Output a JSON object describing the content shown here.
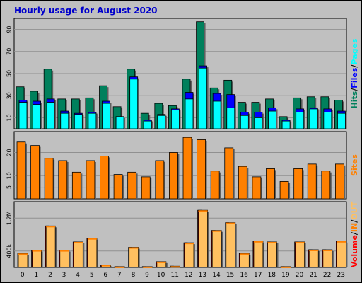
{
  "chart_data": {
    "type": "bar",
    "title": "Hourly usage for August 2020",
    "categories": [
      "0",
      "1",
      "2",
      "3",
      "4",
      "5",
      "6",
      "7",
      "8",
      "9",
      "10",
      "11",
      "12",
      "13",
      "14",
      "15",
      "16",
      "17",
      "18",
      "19",
      "20",
      "21",
      "22",
      "23"
    ],
    "colors": {
      "background": "#c0c0c0",
      "hits": "#00805c",
      "files": "#0000ff",
      "pages": "#00ffff",
      "sites": "#ff8000",
      "volume": "#ff0000",
      "kbin": "#ff8000",
      "kbout": "#ffc060",
      "title": "#0000cc"
    },
    "panels": {
      "top": {
        "ylim": [
          0,
          100
        ],
        "yticks": [
          "10",
          "30",
          "50",
          "70",
          "90"
        ],
        "legend": [
          {
            "text": "Hits",
            "color": "#00805c"
          },
          {
            "text": "/",
            "color": "#000000"
          },
          {
            "text": "Files",
            "color": "#0000ff"
          },
          {
            "text": "/",
            "color": "#000000"
          },
          {
            "text": "Pages",
            "color": "#00ffff"
          }
        ],
        "series": [
          {
            "name": "Hits",
            "values": [
              38,
              34,
              54,
              27,
              27,
              28,
              39,
              20,
              54,
              14,
              23,
              21,
              45,
              97,
              37,
              44,
              24,
              24,
              27,
              11,
              28,
              29,
              29,
              26
            ]
          },
          {
            "name": "Files",
            "values": [
              26,
              25,
              27,
              16,
              14,
              15,
              25,
              11,
              47,
              8,
              13,
              18,
              33,
              57,
              32,
              31,
              15,
              15,
              19,
              8,
              18,
              19,
              18,
              16
            ]
          },
          {
            "name": "Pages",
            "values": [
              24,
              22,
              24,
              14,
              13,
              14,
              23,
              11,
              45,
              7,
              12,
              17,
              27,
              55,
              25,
              19,
              12,
              10,
              16,
              7,
              15,
              18,
              15,
              14
            ]
          }
        ]
      },
      "middle": {
        "ylim": [
          0,
          29
        ],
        "yticks": [
          "5",
          "10",
          "20"
        ],
        "legend": [
          {
            "text": "Sites",
            "color": "#ff8000"
          }
        ],
        "series": [
          {
            "name": "Sites",
            "values": [
              24.5,
              23,
              17.5,
              16.5,
              11.5,
              16.5,
              18.5,
              10.5,
              11.5,
              9.5,
              16.5,
              20,
              26.5,
              25.5,
              12,
              22,
              14,
              9.5,
              13,
              7.5,
              13,
              15,
              12,
              15
            ]
          }
        ]
      },
      "bottom": {
        "ylim": [
          0,
          1600000
        ],
        "yticks": [
          "400k",
          "1.2M"
        ],
        "legend": [
          {
            "text": "Volume",
            "color": "#ff0000"
          },
          {
            "text": "/",
            "color": "#000000"
          },
          {
            "text": "IN",
            "color": "#ff8000"
          },
          {
            "text": "/",
            "color": "#000000"
          },
          {
            "text": "OUT",
            "color": "#ffc060"
          }
        ],
        "series": [
          {
            "name": "Volume",
            "values": [
              340000,
              420000,
              1010000,
              420000,
              620000,
              710000,
              60000,
              20000,
              490000,
              20000,
              140000,
              30000,
              600000,
              1390000,
              900000,
              1090000,
              340000,
              640000,
              620000,
              20000,
              620000,
              430000,
              430000,
              640000
            ]
          }
        ]
      }
    }
  }
}
